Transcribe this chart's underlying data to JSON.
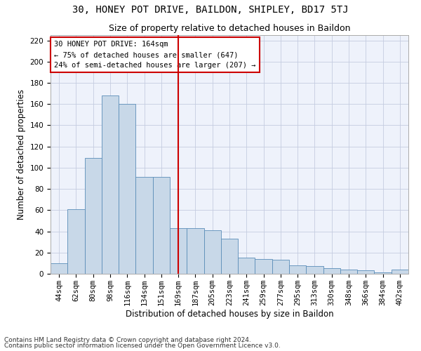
{
  "title": "30, HONEY POT DRIVE, BAILDON, SHIPLEY, BD17 5TJ",
  "subtitle": "Size of property relative to detached houses in Baildon",
  "xlabel": "Distribution of detached houses by size in Baildon",
  "ylabel": "Number of detached properties",
  "categories": [
    "44sqm",
    "62sqm",
    "80sqm",
    "98sqm",
    "116sqm",
    "134sqm",
    "151sqm",
    "169sqm",
    "187sqm",
    "205sqm",
    "223sqm",
    "241sqm",
    "259sqm",
    "277sqm",
    "295sqm",
    "313sqm",
    "330sqm",
    "348sqm",
    "366sqm",
    "384sqm",
    "402sqm"
  ],
  "values": [
    10,
    61,
    109,
    168,
    160,
    91,
    91,
    43,
    43,
    41,
    33,
    15,
    14,
    13,
    8,
    7,
    5,
    4,
    3,
    1,
    4
  ],
  "bar_color": "#c8d8e8",
  "bar_edge_color": "#5b8db8",
  "vline_x_index": 7,
  "annotation_line1": "30 HONEY POT DRIVE: 164sqm",
  "annotation_line2": "← 75% of detached houses are smaller (647)",
  "annotation_line3": "24% of semi-detached houses are larger (207) →",
  "annotation_box_color": "#cc0000",
  "vline_color": "#cc0000",
  "ylim": [
    0,
    225
  ],
  "yticks": [
    0,
    20,
    40,
    60,
    80,
    100,
    120,
    140,
    160,
    180,
    200,
    220
  ],
  "footer1": "Contains HM Land Registry data © Crown copyright and database right 2024.",
  "footer2": "Contains public sector information licensed under the Open Government Licence v3.0.",
  "background_color": "#eef2fb",
  "grid_color": "#c5cce0",
  "title_fontsize": 10,
  "subtitle_fontsize": 9,
  "axis_label_fontsize": 8.5,
  "tick_fontsize": 7.5,
  "footer_fontsize": 6.5,
  "annotation_fontsize": 7.5
}
